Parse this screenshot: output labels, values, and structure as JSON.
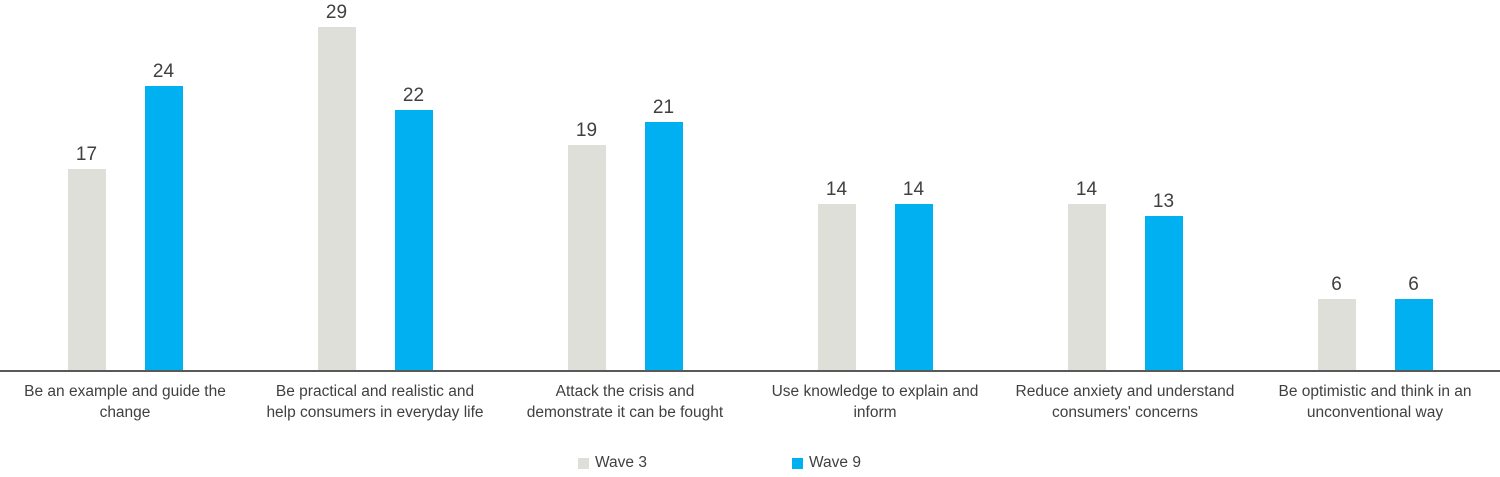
{
  "chart_data": {
    "type": "bar",
    "title": "",
    "xlabel": "",
    "ylabel": "",
    "ylim": [
      0,
      30
    ],
    "grid": false,
    "legend_position": "bottom",
    "value_labels": true,
    "categories": [
      "Be an example and guide the change",
      "Be practical and realistic and help consumers in everyday life",
      "Attack the crisis and demonstrate it can be fought",
      "Use knowledge to explain and inform",
      "Reduce anxiety and understand consumers' concerns",
      "Be optimistic and think in an unconventional way"
    ],
    "categories_lines": [
      [
        "Be an example and guide the",
        "change"
      ],
      [
        "Be practical and realistic and",
        "help consumers in everyday life"
      ],
      [
        "Attack the crisis and",
        "demonstrate it can be fought"
      ],
      [
        "Use knowledge to explain and",
        "inform"
      ],
      [
        "Reduce anxiety and understand",
        "consumers' concerns"
      ],
      [
        "Be optimistic and think in an",
        "unconventional way"
      ]
    ],
    "series": [
      {
        "name": "Wave 3",
        "color": "#DFDFD9",
        "values": [
          17,
          29,
          19,
          14,
          14,
          6
        ]
      },
      {
        "name": "Wave 9",
        "color": "#00B0F0",
        "values": [
          24,
          22,
          21,
          14,
          13,
          6
        ]
      }
    ]
  },
  "colors": {
    "axis_line": "#595959",
    "label_text": "#404040",
    "background": "#ffffff"
  }
}
